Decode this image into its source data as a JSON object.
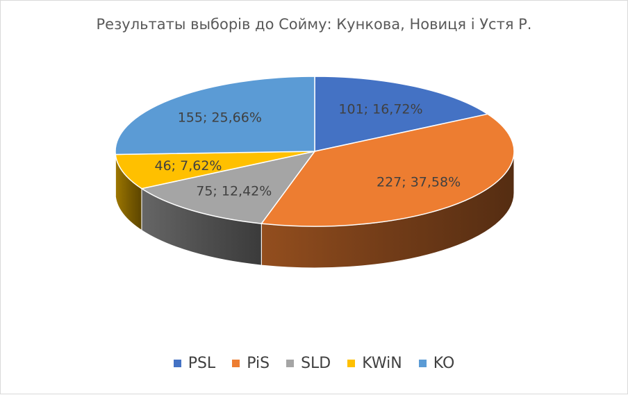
{
  "chart_data": {
    "type": "pie",
    "title": "Результаты выборів до Сойму: Кункова, Новиця і Устя Р.",
    "series": [
      {
        "name": "PSL",
        "value": 101,
        "label": "101; 16,72%",
        "color": "#4472C4"
      },
      {
        "name": "PiS",
        "value": 227,
        "label": "227; 37,58%",
        "color": "#ED7D31"
      },
      {
        "name": "SLD",
        "value": 75,
        "label": "75; 12,42%",
        "color": "#A5A5A5"
      },
      {
        "name": "KWiN",
        "value": 46,
        "label": "46; 7,62%",
        "color": "#FFC000"
      },
      {
        "name": "KO",
        "value": 155,
        "label": "155; 25,66%",
        "color": "#5B9BD5"
      }
    ],
    "legend_position": "bottom",
    "style": "3d-pie"
  }
}
